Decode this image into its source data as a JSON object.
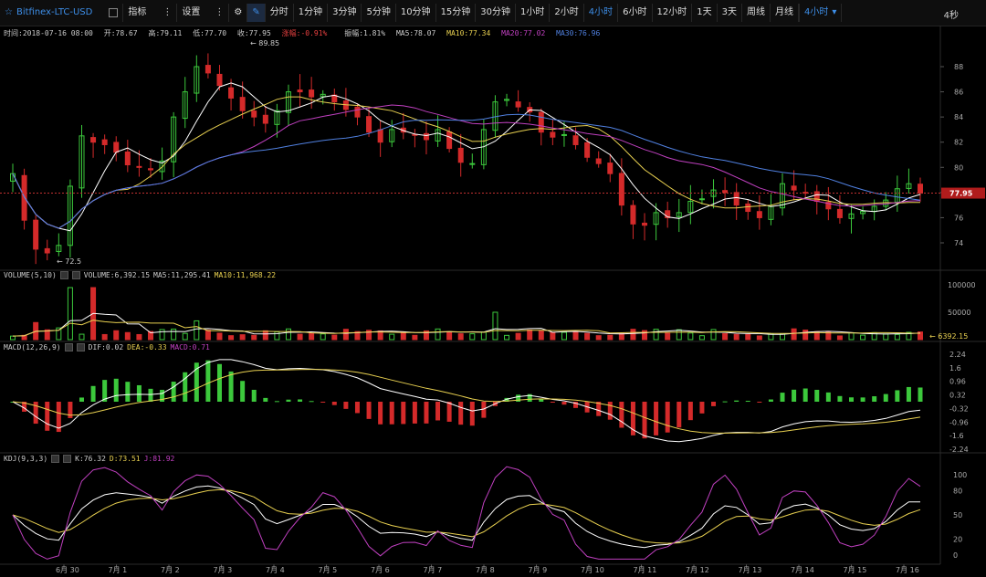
{
  "toolbar": {
    "symbol": "Bitfinex-LTC-USD",
    "indicator_label": "指标",
    "settings_label": "设置",
    "intervals": [
      "分时",
      "1分钟",
      "3分钟",
      "5分钟",
      "10分钟",
      "15分钟",
      "30分钟",
      "1小时",
      "2小时",
      "4小时",
      "6小时",
      "12小时",
      "1天",
      "3天",
      "周线",
      "月线"
    ],
    "active_interval": "4小时",
    "dropdown_label": "4小时",
    "refresh": "4秒"
  },
  "info": {
    "time": "时间:2018-07-16 08:00",
    "open": "开:78.67",
    "high": "高:79.11",
    "low": "低:77.70",
    "close": "收:77.95",
    "change": "涨幅:-0.91%",
    "amplitude": "振幅:1.81%",
    "ma5": "MA5:78.07",
    "ma10": "MA10:77.34",
    "ma20": "MA20:77.02",
    "ma30": "MA30:76.96"
  },
  "volume_panel": {
    "title": "VOLUME(5,10)",
    "volume": "VOLUME:6,392.15",
    "ma5": "MA5:11,295.41",
    "ma10": "MA10:11,968.22",
    "last": "6392.15",
    "axis": [
      "100000",
      "50000"
    ]
  },
  "macd_panel": {
    "title": "MACD(12,26,9)",
    "dif": "DIF:0.02",
    "dea": "DEA:-0.33",
    "macd": "MACD:0.71",
    "axis": [
      "2.24",
      "1.6",
      "0.96",
      "0.32",
      "-0.32",
      "-0.96",
      "-1.6",
      "-2.24"
    ]
  },
  "kdj_panel": {
    "title": "KDJ(9,3,3)",
    "k": "K:76.32",
    "d": "D:73.51",
    "j": "J:81.92",
    "axis": [
      "100",
      "80",
      "50",
      "20",
      "0"
    ]
  },
  "price_axis": [
    "88",
    "86",
    "84",
    "82",
    "80",
    "78",
    "76",
    "74"
  ],
  "price_current": "77.95",
  "price_high_mark": "89.85",
  "price_low_mark": "72.5",
  "dates": [
    "6月 30",
    "7月 1",
    "7月 2",
    "7月 3",
    "7月 4",
    "7月 5",
    "7月 6",
    "7月 7",
    "7月 8",
    "7月 9",
    "7月 10",
    "7月 11",
    "7月 12",
    "7月 13",
    "7月 14",
    "7月 15",
    "7月 16"
  ],
  "colors": {
    "up": "#3cc83c",
    "down": "#d42a2a",
    "ma5": "#ffffff",
    "ma10": "#e8d050",
    "ma20": "#c040c0",
    "ma30": "#5080e0",
    "accent": "#3d8ee8"
  },
  "chart_data": {
    "type": "candlestick",
    "closes": [
      79.5,
      75.8,
      73.5,
      73.2,
      73.8,
      78.5,
      82.5,
      82.0,
      81.8,
      81.2,
      80.2,
      80.0,
      79.8,
      80.5,
      84.0,
      86.0,
      88.0,
      87.5,
      86.5,
      85.5,
      84.5,
      84.0,
      83.5,
      84.5,
      86.0,
      86.0,
      85.6,
      85.8,
      85.2,
      84.6,
      84.0,
      82.8,
      82.0,
      83.0,
      82.8,
      82.6,
      82.2,
      83.0,
      81.5,
      80.4,
      80.3,
      83.0,
      85.2,
      85.4,
      84.8,
      84.4,
      82.8,
      82.4,
      82.6,
      81.8,
      80.8,
      80.3,
      79.5,
      77.0,
      75.5,
      75.4,
      76.4,
      76.0,
      76.4,
      77.3,
      77.5,
      78.2,
      78.0,
      77.0,
      76.5,
      76.0,
      76.9,
      78.7,
      78.2,
      78.0,
      77.3,
      76.7,
      76.0,
      76.3,
      76.5,
      76.9,
      77.4,
      78.3,
      78.7,
      77.95
    ]
  }
}
